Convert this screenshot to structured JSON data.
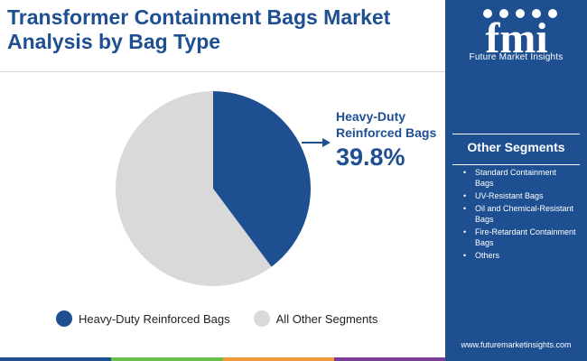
{
  "header": {
    "title_line1": "Transformer Containment Bags Market",
    "title_line2": "Analysis by Bag Type"
  },
  "logo": {
    "letters": "fmi",
    "caption": "Future Market Insights"
  },
  "sidebar": {
    "heading": "Other Segments",
    "items": [
      "Standard Containment Bags",
      "UV-Resistant Bags",
      "Oil and Chemical-Resistant Bags",
      "Fire-Retardant Containment Bags",
      "Others"
    ],
    "website": "www.futuremarketinsights.com"
  },
  "colors": {
    "brand": "#1d4f91",
    "highlight": "#1d4f91",
    "other": "#d9d9d9",
    "bottom_bar": [
      "#1d4f91",
      "#6abf4b",
      "#f29a3a",
      "#7a3e97"
    ]
  },
  "chart_data": {
    "type": "pie",
    "slices": [
      {
        "label": "Heavy-Duty Reinforced Bags",
        "value": 39.8,
        "color": "#1d4f91"
      },
      {
        "label": "All Other Segments",
        "value": 60.2,
        "color": "#d9d9d9"
      }
    ],
    "annotation": {
      "label_line1": "Heavy-Duty",
      "label_line2": "Reinforced Bags",
      "value_text": "39.8%"
    },
    "legend": {
      "position": "bottom",
      "entries": [
        "Heavy-Duty Reinforced Bags",
        "All Other Segments"
      ]
    }
  }
}
